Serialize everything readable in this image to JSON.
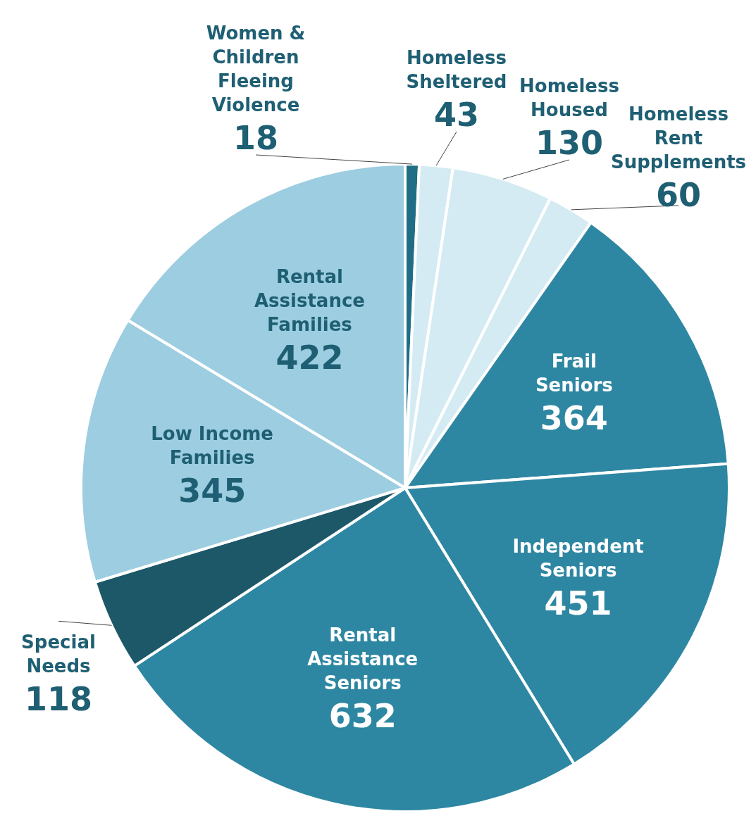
{
  "chart_data": {
    "type": "pie",
    "categories": [
      "Women & Children Fleeing Violence",
      "Homeless Sheltered",
      "Homeless Housed",
      "Homeless Rent Supplements",
      "Frail Seniors",
      "Independent Seniors",
      "Rental Assistance Seniors",
      "Special Needs",
      "Low Income Families",
      "Rental Assistance Families"
    ],
    "values": [
      18,
      43,
      130,
      60,
      364,
      451,
      632,
      118,
      345,
      422
    ],
    "colors": [
      "#1f6e85",
      "#d4ebf3",
      "#d4ebf3",
      "#d4ebf3",
      "#2e87a2",
      "#2e87a2",
      "#2e87a2",
      "#1d5868",
      "#9ccde0",
      "#9ccde0"
    ],
    "data_labels": true
  }
}
